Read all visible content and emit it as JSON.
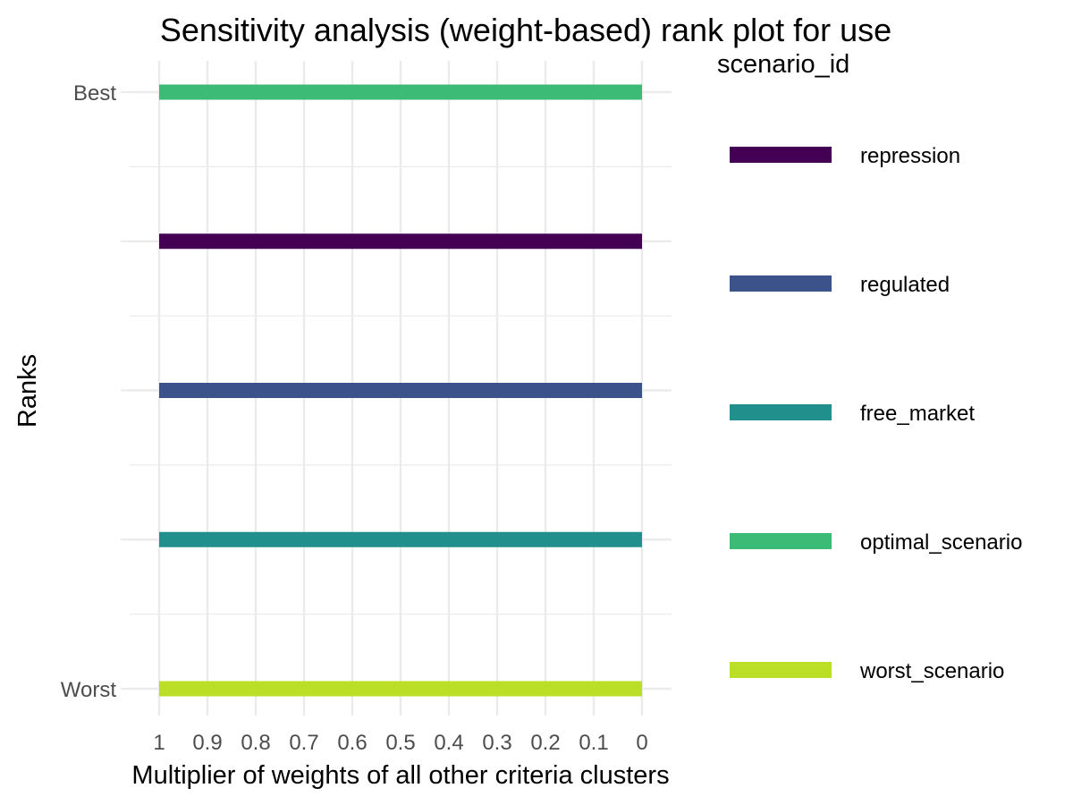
{
  "chart_data": {
    "type": "line",
    "title": "Sensitivity analysis (weight-based) rank plot for use",
    "xlabel": "Multiplier of weights of all other criteria clusters",
    "ylabel": "Ranks",
    "x_ticks": [
      "1",
      "0.9",
      "0.8",
      "0.7",
      "0.6",
      "0.5",
      "0.4",
      "0.3",
      "0.2",
      "0.1",
      "0"
    ],
    "x_tick_values": [
      1,
      0.9,
      0.8,
      0.7,
      0.6,
      0.5,
      0.4,
      0.3,
      0.2,
      0.1,
      0
    ],
    "xlim": [
      1,
      0
    ],
    "x_reversed": true,
    "y_ticks": [
      {
        "rank": 1,
        "label": "Best"
      },
      {
        "rank": 2,
        "label": ""
      },
      {
        "rank": 3,
        "label": ""
      },
      {
        "rank": 4,
        "label": ""
      },
      {
        "rank": 5,
        "label": "Worst"
      }
    ],
    "ylim": [
      5,
      1
    ],
    "grid": true,
    "legend": {
      "title": "scenario_id",
      "position": "right"
    },
    "series": [
      {
        "name": "repression",
        "color": "#440154",
        "x": [
          1,
          0.9,
          0.8,
          0.7,
          0.6,
          0.5,
          0.4,
          0.3,
          0.2,
          0.1,
          0
        ],
        "rank": [
          2,
          2,
          2,
          2,
          2,
          2,
          2,
          2,
          2,
          2,
          2
        ]
      },
      {
        "name": "regulated",
        "color": "#3b528b",
        "x": [
          1,
          0.9,
          0.8,
          0.7,
          0.6,
          0.5,
          0.4,
          0.3,
          0.2,
          0.1,
          0
        ],
        "rank": [
          3,
          3,
          3,
          3,
          3,
          3,
          3,
          3,
          3,
          3,
          3
        ]
      },
      {
        "name": "free_market",
        "color": "#21908c",
        "x": [
          1,
          0.9,
          0.8,
          0.7,
          0.6,
          0.5,
          0.4,
          0.3,
          0.2,
          0.1,
          0
        ],
        "rank": [
          4,
          4,
          4,
          4,
          4,
          4,
          4,
          4,
          4,
          4,
          4
        ]
      },
      {
        "name": "optimal_scenario",
        "color": "#3bbb75",
        "x": [
          1,
          0.9,
          0.8,
          0.7,
          0.6,
          0.5,
          0.4,
          0.3,
          0.2,
          0.1,
          0
        ],
        "rank": [
          1,
          1,
          1,
          1,
          1,
          1,
          1,
          1,
          1,
          1,
          1
        ]
      },
      {
        "name": "worst_scenario",
        "color": "#bbdf27",
        "x": [
          1,
          0.9,
          0.8,
          0.7,
          0.6,
          0.5,
          0.4,
          0.3,
          0.2,
          0.1,
          0
        ],
        "rank": [
          5,
          5,
          5,
          5,
          5,
          5,
          5,
          5,
          5,
          5,
          5
        ]
      }
    ]
  }
}
